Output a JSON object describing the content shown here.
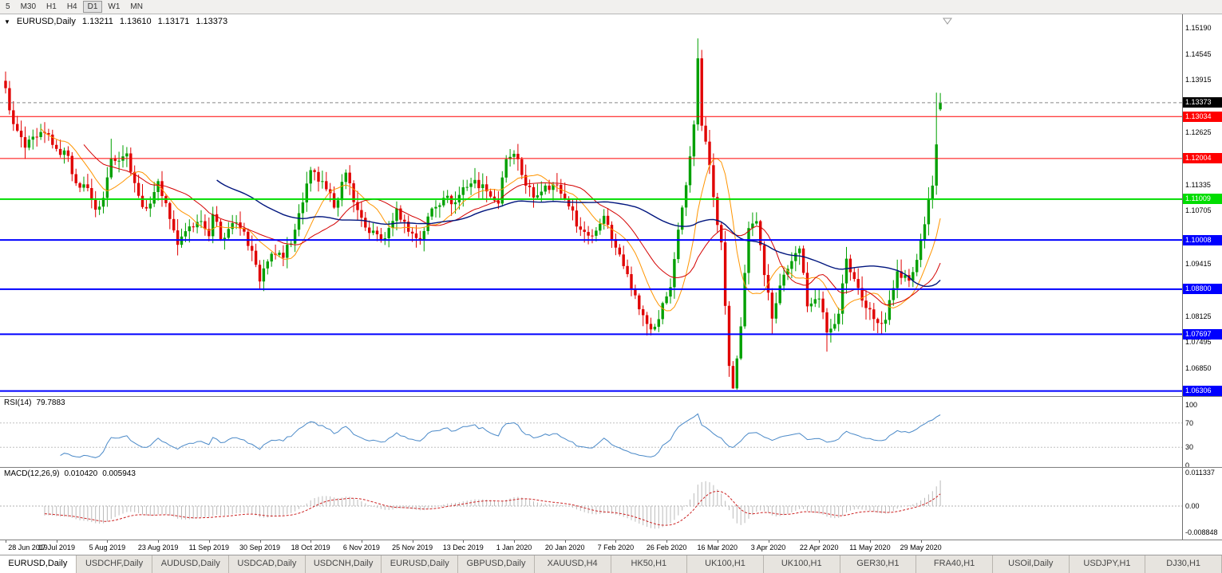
{
  "colors": {
    "bull": "#00A000",
    "bear": "#E00000",
    "ma_fast": "#FF9500",
    "ma_mid": "#D40000",
    "ma_slow": "#00157E",
    "level_red": "#FF0000",
    "level_green": "#00DD00",
    "level_blue": "#0000FF",
    "current_badge_bg": "#000000",
    "rsi_line": "#4A89C8",
    "macd_hist": "#BBBBBB",
    "macd_signal": "#CC2222"
  },
  "toolbar": {
    "periods": [
      {
        "label": "5",
        "active": false
      },
      {
        "label": "M30",
        "active": false
      },
      {
        "label": "H1",
        "active": false
      },
      {
        "label": "H4",
        "active": false
      },
      {
        "label": "D1",
        "active": true
      },
      {
        "label": "W1",
        "active": false
      },
      {
        "label": "MN",
        "active": false
      }
    ]
  },
  "chart": {
    "symbol_label": "EURUSD,Daily",
    "dropdown_icon": "▼",
    "quote_open": "1.13211",
    "quote_high": "1.13610",
    "quote_low": "1.13171",
    "quote_close": "1.13373",
    "current_price": "1.13373",
    "levels": [
      {
        "price": 1.13034,
        "label": "1.13034",
        "color_key": "level_red",
        "width": 1
      },
      {
        "price": 1.12004,
        "label": "1.12004",
        "color_key": "level_red",
        "width": 1
      },
      {
        "price": 1.11009,
        "label": "1.11009",
        "color_key": "level_green",
        "width": 2
      },
      {
        "price": 1.10008,
        "label": "1.10008",
        "color_key": "level_blue",
        "width": 2
      },
      {
        "price": 1.088,
        "label": "1.08800",
        "color_key": "level_blue",
        "width": 2
      },
      {
        "price": 1.07697,
        "label": "1.07697",
        "color_key": "level_blue",
        "width": 2
      },
      {
        "price": 1.06306,
        "label": "1.06306",
        "color_key": "level_blue",
        "width": 2
      }
    ],
    "y_ticks": [
      1.1519,
      1.14545,
      1.13915,
      1.12625,
      1.11335,
      1.10705,
      1.09415,
      1.08125,
      1.07495,
      1.0685
    ]
  },
  "rsi": {
    "label": "RSI(14)",
    "value": "79.7883",
    "ticks": [
      100,
      70,
      30,
      0
    ],
    "levels": [
      70,
      30
    ]
  },
  "macd": {
    "label": "MACD(12,26,9)",
    "value_main": "0.010420",
    "value_signal": "0.005943",
    "axis_labels": [
      {
        "v": 0.011337,
        "text": "0.011337"
      },
      {
        "v": 0,
        "text": "0.00"
      },
      {
        "v": -0.008848,
        "text": "-0.008848"
      }
    ]
  },
  "time_axis": {
    "labels": [
      "28 Jun 2019",
      "17 Jul 2019",
      "5 Aug 2019",
      "23 Aug 2019",
      "11 Sep 2019",
      "30 Sep 2019",
      "18 Oct 2019",
      "6 Nov 2019",
      "25 Nov 2019",
      "13 Dec 2019",
      "1 Jan 2020",
      "20 Jan 2020",
      "7 Feb 2020",
      "26 Feb 2020",
      "16 Mar 2020",
      "3 Apr 2020",
      "22 Apr 2020",
      "11 May 2020",
      "29 May 2020"
    ],
    "step": 13
  },
  "tabs": [
    {
      "label": "EURUSD,Daily",
      "active": true
    },
    {
      "label": "USDCHF,Daily",
      "active": false
    },
    {
      "label": "AUDUSD,Daily",
      "active": false
    },
    {
      "label": "USDCAD,Daily",
      "active": false
    },
    {
      "label": "USDCNH,Daily",
      "active": false
    },
    {
      "label": "EURUSD,Daily",
      "active": false
    },
    {
      "label": "GBPUSD,Daily",
      "active": false
    },
    {
      "label": "XAUUSD,H4",
      "active": false
    },
    {
      "label": "HK50,H1",
      "active": false
    },
    {
      "label": "UK100,H1",
      "active": false
    },
    {
      "label": "UK100,H1",
      "active": false
    },
    {
      "label": "GER30,H1",
      "active": false
    },
    {
      "label": "FRA40,H1",
      "active": false
    },
    {
      "label": "USOil,Daily",
      "active": false
    },
    {
      "label": "USDJPY,H1",
      "active": false
    },
    {
      "label": "DJ30,H1",
      "active": false
    }
  ],
  "chart_data": {
    "type": "candlestick",
    "symbol": "EURUSD",
    "timeframe": "Daily",
    "candle_count": 240,
    "price_range": [
      1.0622,
      1.155
    ],
    "rsi_period": 14,
    "macd_params": {
      "fast": 12,
      "slow": 26,
      "signal": 9
    },
    "ma": [
      {
        "period": 10,
        "color_key": "ma_fast",
        "width": 1
      },
      {
        "period": 21,
        "color_key": "ma_mid",
        "width": 1
      },
      {
        "period": 55,
        "color_key": "ma_slow",
        "width": 1.4
      }
    ],
    "close_keypoints": [
      [
        0,
        1.1373
      ],
      [
        2,
        1.1285
      ],
      [
        5,
        1.1227
      ],
      [
        8,
        1.1253
      ],
      [
        11,
        1.1259
      ],
      [
        13,
        1.1224
      ],
      [
        16,
        1.1207
      ],
      [
        18,
        1.114
      ],
      [
        21,
        1.1128
      ],
      [
        23,
        1.1075
      ],
      [
        25,
        1.1104
      ],
      [
        27,
        1.12
      ],
      [
        31,
        1.1213
      ],
      [
        34,
        1.1109
      ],
      [
        36,
        1.1078
      ],
      [
        39,
        1.1145
      ],
      [
        41,
        1.1091
      ],
      [
        44,
        1.0989
      ],
      [
        47,
        1.1034
      ],
      [
        50,
        1.1047
      ],
      [
        52,
        1.101
      ],
      [
        53,
        1.1064
      ],
      [
        55,
        1.1003
      ],
      [
        58,
        1.1042
      ],
      [
        61,
        1.1021
      ],
      [
        64,
        1.094
      ],
      [
        65,
        1.0899
      ],
      [
        68,
        1.0967
      ],
      [
        71,
        1.0957
      ],
      [
        74,
        1.1026
      ],
      [
        78,
        1.1172
      ],
      [
        82,
        1.1125
      ],
      [
        84,
        1.108
      ],
      [
        87,
        1.1166
      ],
      [
        90,
        1.1074
      ],
      [
        93,
        1.1018
      ],
      [
        97,
        1.1005
      ],
      [
        100,
        1.1078
      ],
      [
        103,
        1.1021
      ],
      [
        106,
        1.1001
      ],
      [
        109,
        1.1078
      ],
      [
        112,
        1.1104
      ],
      [
        115,
        1.1093
      ],
      [
        117,
        1.113
      ],
      [
        120,
        1.1148
      ],
      [
        123,
        1.112
      ],
      [
        126,
        1.109
      ],
      [
        128,
        1.1199
      ],
      [
        130,
        1.1212
      ],
      [
        132,
        1.116
      ],
      [
        135,
        1.1105
      ],
      [
        138,
        1.1134
      ],
      [
        141,
        1.1136
      ],
      [
        144,
        1.1083
      ],
      [
        147,
        1.1026
      ],
      [
        150,
        1.1011
      ],
      [
        153,
        1.106
      ],
      [
        156,
        1.0982
      ],
      [
        159,
        1.0917
      ],
      [
        162,
        1.0831
      ],
      [
        164,
        1.0795
      ],
      [
        166,
        1.0788
      ],
      [
        168,
        1.0846
      ],
      [
        170,
        1.0885
      ],
      [
        172,
        1.1026
      ],
      [
        174,
        1.1135
      ],
      [
        176,
        1.1284
      ],
      [
        177,
        1.1446
      ],
      [
        178,
        1.1281
      ],
      [
        180,
        1.1184
      ],
      [
        181,
        1.1106
      ],
      [
        183,
        1.0995
      ],
      [
        185,
        1.0692
      ],
      [
        186,
        1.0637
      ],
      [
        188,
        1.0789
      ],
      [
        190,
        1.103
      ],
      [
        192,
        1.1047
      ],
      [
        194,
        1.0915
      ],
      [
        196,
        1.0808
      ],
      [
        198,
        1.0889
      ],
      [
        200,
        1.093
      ],
      [
        203,
        1.098
      ],
      [
        205,
        1.0838
      ],
      [
        208,
        1.0857
      ],
      [
        210,
        1.0774
      ],
      [
        213,
        1.082
      ],
      [
        215,
        1.0955
      ],
      [
        217,
        1.0905
      ],
      [
        220,
        1.0834
      ],
      [
        222,
        1.0807
      ],
      [
        225,
        1.0805
      ],
      [
        228,
        1.0924
      ],
      [
        231,
        1.0901
      ],
      [
        233,
        1.0952
      ],
      [
        234,
        1.1002
      ],
      [
        236,
        1.1101
      ],
      [
        237,
        1.1134
      ],
      [
        238,
        1.1235
      ],
      [
        239,
        1.13373
      ]
    ],
    "high_overrides": {
      "27": 1.1249,
      "78": 1.118,
      "177": 1.1495,
      "238": 1.1362
    },
    "low_overrides": {
      "44": 1.0963,
      "65": 1.0879,
      "166": 1.0778,
      "186": 1.0636,
      "196": 1.0769,
      "210": 1.0727,
      "225": 1.0775
    },
    "last_candle": {
      "open": 1.13211,
      "high": 1.1361,
      "low": 1.13171,
      "close": 1.13373
    }
  }
}
